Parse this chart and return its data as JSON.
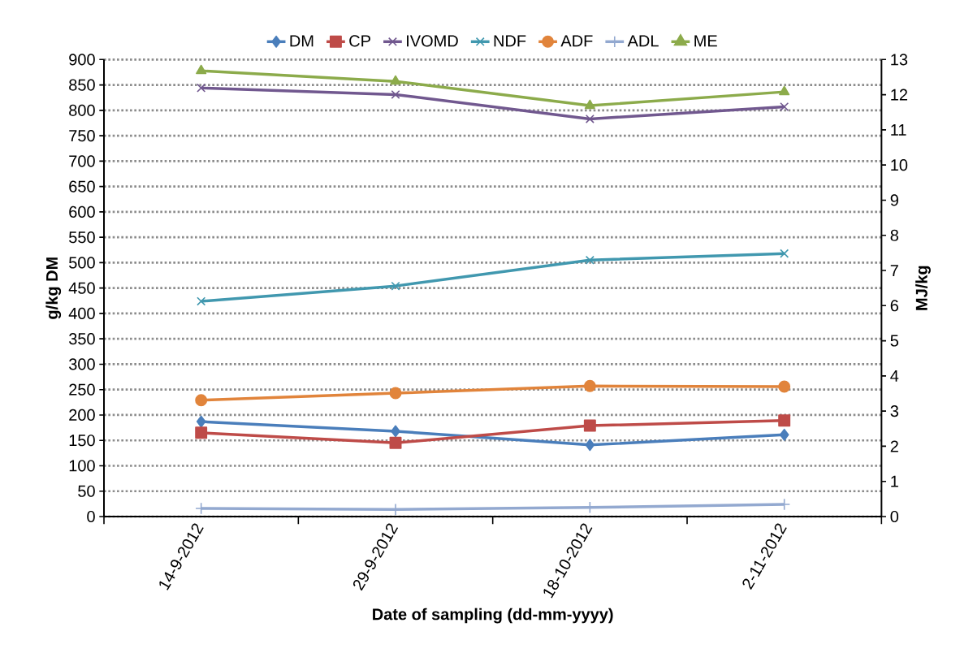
{
  "chart_data": {
    "type": "line",
    "xlabel": "Date of sampling (dd-mm-yyyy)",
    "ylabel": "g/kg DM",
    "y2label": "MJ/kg",
    "categories": [
      "14-9-2012",
      "29-9-2012",
      "18-10-2012",
      "2-11-2012"
    ],
    "ylim": [
      0,
      900
    ],
    "yticks": [
      0,
      50,
      100,
      150,
      200,
      250,
      300,
      350,
      400,
      450,
      500,
      550,
      600,
      650,
      700,
      750,
      800,
      850,
      900
    ],
    "y2lim": [
      0,
      13
    ],
    "y2ticks": [
      0,
      1,
      2,
      3,
      4,
      5,
      6,
      7,
      8,
      9,
      10,
      11,
      12,
      13
    ],
    "grid": "y",
    "legend": "top",
    "line_style": "solid",
    "series": [
      {
        "name": "DM",
        "color": "#4a7ebb",
        "marker": "diamond",
        "values": [
          187,
          168,
          141,
          161
        ]
      },
      {
        "name": "CP",
        "color": "#be4b48",
        "marker": "square",
        "values": [
          165,
          145,
          179,
          189
        ]
      },
      {
        "name": "IVOMD",
        "color": "#71588f",
        "marker": "cross",
        "values": [
          844,
          831,
          783,
          807
        ]
      },
      {
        "name": "NDF",
        "color": "#4198af",
        "marker": "cross",
        "values": [
          424,
          454,
          505,
          518
        ]
      },
      {
        "name": "ADF",
        "color": "#e1843b",
        "marker": "circle",
        "values": [
          229,
          243,
          257,
          256
        ]
      },
      {
        "name": "ADL",
        "color": "#93a9d0",
        "marker": "plus",
        "values": [
          16,
          14,
          18,
          24
        ]
      },
      {
        "name": "ME",
        "color": "#8cab4b",
        "marker": "triangle",
        "axis": "y2",
        "values": [
          12.68,
          12.38,
          11.69,
          12.08
        ]
      }
    ]
  }
}
